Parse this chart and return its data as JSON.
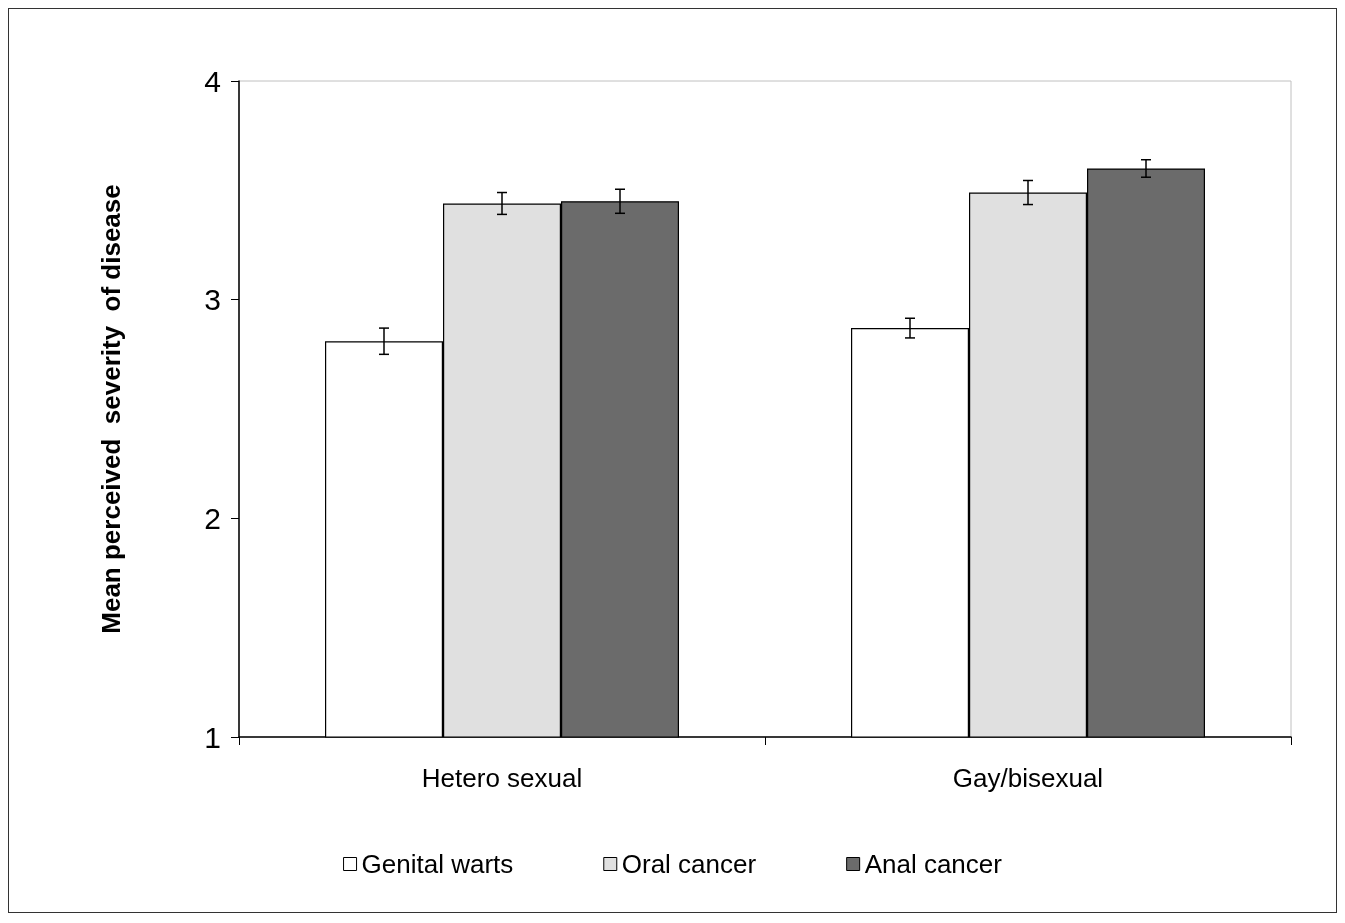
{
  "chart_data": {
    "type": "bar",
    "ylabel": "Mean perceived  severity  of disease",
    "categories": [
      "Hetero sexual",
      "Gay/bisexual"
    ],
    "series": [
      {
        "name": "Genital warts",
        "color": "#ffffff",
        "values": [
          2.81,
          2.87
        ],
        "errors": [
          0.06,
          0.045
        ]
      },
      {
        "name": "Oral cancer",
        "color": "#e0e0e0",
        "values": [
          3.44,
          3.49
        ],
        "errors": [
          0.05,
          0.055
        ]
      },
      {
        "name": "Anal cancer",
        "color": "#6b6b6b",
        "values": [
          3.45,
          3.6
        ],
        "errors": [
          0.055,
          0.04
        ]
      }
    ],
    "ylim": [
      1,
      4
    ],
    "yticks": [
      1,
      2,
      3,
      4
    ],
    "grid": false,
    "legend": "bottom"
  }
}
